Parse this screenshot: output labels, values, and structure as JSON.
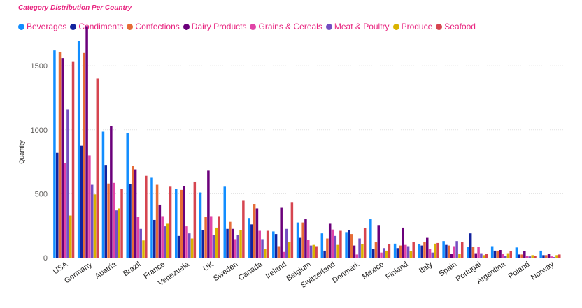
{
  "chart_data": {
    "type": "bar",
    "title": "Category Distribution Per Country",
    "xlabel": "",
    "ylabel": "Quantity",
    "ylim": [
      0,
      1850
    ],
    "yticks": [
      0,
      500,
      1000,
      1500
    ],
    "legend_position": "top-left",
    "categories": [
      "USA",
      "Germany",
      "Austria",
      "Brazil",
      "France",
      "Venezuela",
      "UK",
      "Sweden",
      "Canada",
      "Ireland",
      "Belgium",
      "Switzerland",
      "Denmark",
      "Mexico",
      "Finland",
      "Italy",
      "Spain",
      "Portugal",
      "Argentina",
      "Poland",
      "Norway"
    ],
    "series": [
      {
        "name": "Beverages",
        "color": "#118dff",
        "values": [
          1620,
          1695,
          985,
          975,
          625,
          535,
          510,
          555,
          310,
          205,
          275,
          190,
          200,
          300,
          110,
          105,
          130,
          85,
          90,
          80,
          55
        ]
      },
      {
        "name": "Condiments",
        "color": "#12239e",
        "values": [
          820,
          875,
          725,
          575,
          295,
          170,
          215,
          225,
          260,
          185,
          155,
          55,
          215,
          70,
          75,
          95,
          100,
          190,
          55,
          25,
          20
        ]
      },
      {
        "name": "Confections",
        "color": "#e66c37",
        "values": [
          1610,
          1600,
          580,
          720,
          570,
          530,
          320,
          280,
          420,
          90,
          275,
          150,
          185,
          120,
          95,
          125,
          95,
          85,
          55,
          25,
          20
        ]
      },
      {
        "name": "Dairy Products",
        "color": "#6b007b",
        "values": [
          1560,
          1810,
          1030,
          690,
          415,
          560,
          680,
          225,
          385,
          390,
          300,
          265,
          95,
          255,
          235,
          155,
          30,
          35,
          60,
          50,
          30
        ]
      },
      {
        "name": "Grains & Cereals",
        "color": "#e044a7",
        "values": [
          740,
          800,
          585,
          320,
          325,
          245,
          325,
          145,
          210,
          45,
          140,
          220,
          25,
          40,
          100,
          70,
          90,
          85,
          30,
          15,
          10
        ]
      },
      {
        "name": "Meat & Poultry",
        "color": "#744ec2",
        "values": [
          1160,
          570,
          370,
          225,
          245,
          190,
          175,
          175,
          145,
          225,
          95,
          170,
          150,
          75,
          90,
          40,
          130,
          35,
          15,
          10,
          5
        ]
      },
      {
        "name": "Produce",
        "color": "#d9b300",
        "values": [
          330,
          495,
          385,
          135,
          265,
          150,
          235,
          215,
          70,
          120,
          100,
          100,
          105,
          55,
          50,
          110,
          30,
          20,
          35,
          20,
          20
        ]
      },
      {
        "name": "Seafood",
        "color": "#d64550",
        "values": [
          1530,
          1400,
          540,
          640,
          555,
          595,
          325,
          445,
          210,
          435,
          90,
          210,
          230,
          105,
          120,
          115,
          120,
          30,
          50,
          15,
          25
        ]
      }
    ]
  }
}
